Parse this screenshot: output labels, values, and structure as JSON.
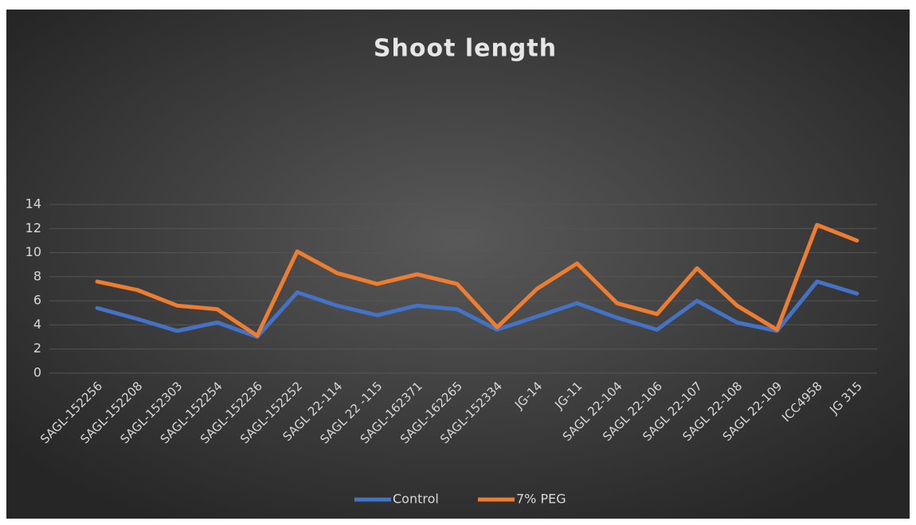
{
  "chart_data": {
    "type": "line",
    "title": "Shoot length",
    "categories": [
      "SAGL-152256",
      "SAGL-152208",
      "SAGL-152303",
      "SAGL-152254",
      "SAGL-152236",
      "SAGL-152252",
      "SAGL 22-114",
      "SAGL 22 -115",
      "SAGL-162371",
      "SAGL-162265",
      "SAGL-152334",
      "JG-14",
      "JG-11",
      "SAGL 22-104",
      "SAGL 22-106",
      "SAGL 22-107",
      "SAGL 22-108",
      "SAGL 22-109",
      "ICC4958",
      "JG 315"
    ],
    "series": [
      {
        "name": "Control",
        "color": "#4472c4",
        "values": [
          5.4,
          4.5,
          3.5,
          4.2,
          3.0,
          6.7,
          5.6,
          4.8,
          5.6,
          5.3,
          3.6,
          4.7,
          5.8,
          4.6,
          3.6,
          6.0,
          4.2,
          3.5,
          7.6,
          6.6
        ]
      },
      {
        "name": "7% PEG",
        "color": "#ed7d31",
        "values": [
          7.6,
          6.9,
          5.6,
          5.3,
          3.1,
          10.1,
          8.3,
          7.4,
          8.2,
          7.4,
          3.8,
          7.0,
          9.1,
          5.8,
          4.9,
          8.7,
          5.6,
          3.6,
          12.3,
          11.0
        ]
      }
    ],
    "ylim": [
      0,
      14
    ],
    "yticks": [
      0,
      2,
      4,
      6,
      8,
      10,
      12,
      14
    ],
    "grid": true,
    "legend": "bottom"
  }
}
